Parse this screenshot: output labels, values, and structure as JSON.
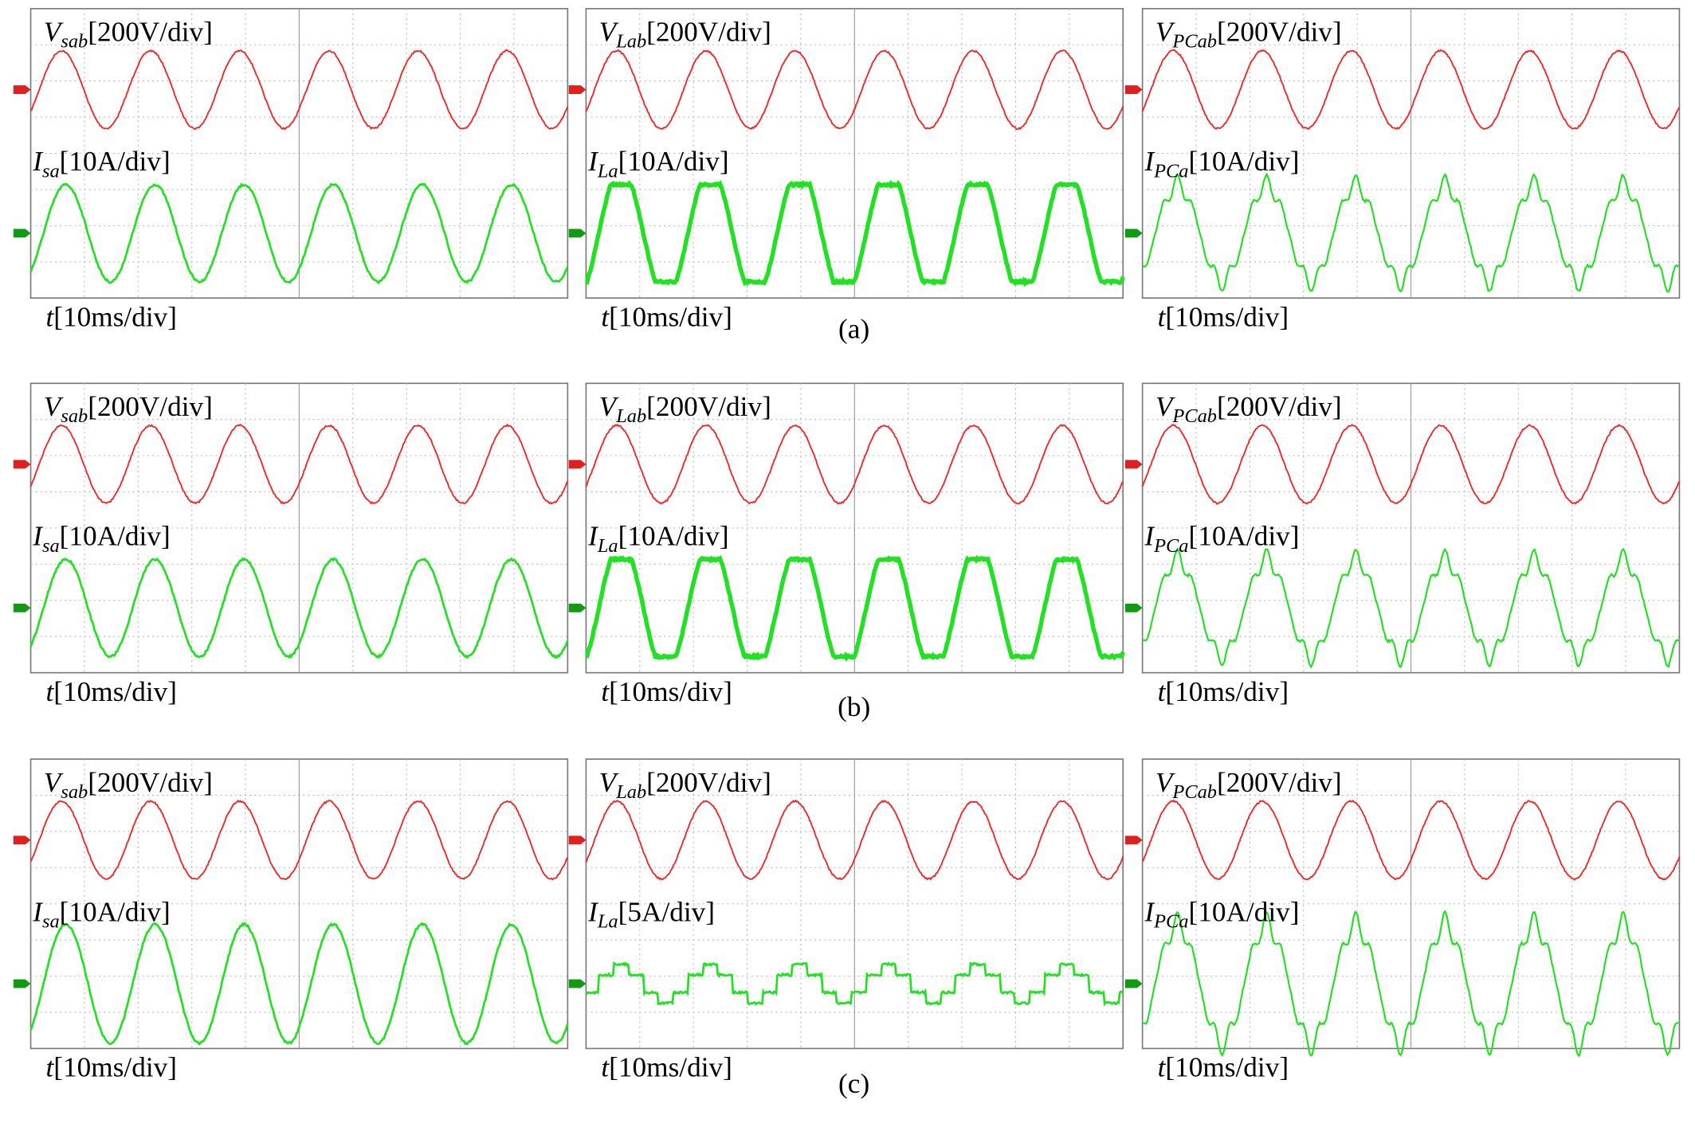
{
  "figure": {
    "rows": [
      {
        "caption": "(a)",
        "panels": [
          {
            "voltage": {
              "symbol": "V",
              "sub": "sab",
              "scale": "[200V/div]"
            },
            "current": {
              "symbol": "I",
              "sub": "sa",
              "scale": "[10A/div]"
            },
            "time": {
              "symbol": "t",
              "scale": "[10ms/div]"
            }
          },
          {
            "voltage": {
              "symbol": "V",
              "sub": "Lab",
              "scale": "[200V/div]"
            },
            "current": {
              "symbol": "I",
              "sub": "La",
              "scale": "[10A/div]"
            },
            "time": {
              "symbol": "t",
              "scale": "[10ms/div]"
            }
          },
          {
            "voltage": {
              "symbol": "V",
              "sub": "PCab",
              "scale": "[200V/div]"
            },
            "current": {
              "symbol": "I",
              "sub": "PCa",
              "scale": "[10A/div]"
            },
            "time": {
              "symbol": "t",
              "scale": "[10ms/div]"
            }
          }
        ]
      },
      {
        "caption": "(b)",
        "panels": [
          {
            "voltage": {
              "symbol": "V",
              "sub": "sab",
              "scale": "[200V/div]"
            },
            "current": {
              "symbol": "I",
              "sub": "sa",
              "scale": "[10A/div]"
            },
            "time": {
              "symbol": "t",
              "scale": "[10ms/div]"
            }
          },
          {
            "voltage": {
              "symbol": "V",
              "sub": "Lab",
              "scale": "[200V/div]"
            },
            "current": {
              "symbol": "I",
              "sub": "La",
              "scale": "[10A/div]"
            },
            "time": {
              "symbol": "t",
              "scale": "[10ms/div]"
            }
          },
          {
            "voltage": {
              "symbol": "V",
              "sub": "PCab",
              "scale": "[200V/div]"
            },
            "current": {
              "symbol": "I",
              "sub": "PCa",
              "scale": "[10A/div]"
            },
            "time": {
              "symbol": "t",
              "scale": "[10ms/div]"
            }
          }
        ]
      },
      {
        "caption": "(c)",
        "panels": [
          {
            "voltage": {
              "symbol": "V",
              "sub": "sab",
              "scale": "[200V/div]"
            },
            "current": {
              "symbol": "I",
              "sub": "sa",
              "scale": "[10A/div]"
            },
            "time": {
              "symbol": "t",
              "scale": "[10ms/div]"
            }
          },
          {
            "voltage": {
              "symbol": "V",
              "sub": "Lab",
              "scale": "[200V/div]"
            },
            "current": {
              "symbol": "I",
              "sub": "La",
              "scale": "[5A/div]"
            },
            "time": {
              "symbol": "t",
              "scale": "[10ms/div]"
            }
          },
          {
            "voltage": {
              "symbol": "V",
              "sub": "PCab",
              "scale": "[200V/div]"
            },
            "current": {
              "symbol": "I",
              "sub": "PCa",
              "scale": "[10A/div]"
            },
            "time": {
              "symbol": "t",
              "scale": "[10ms/div]"
            }
          }
        ]
      }
    ]
  }
}
